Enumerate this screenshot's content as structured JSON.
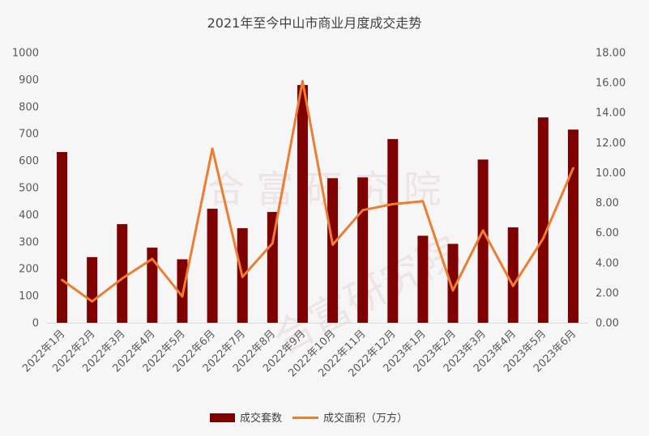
{
  "title": "2021年至今中山市商业月度成交走势",
  "watermark": "合  富  研  究  院",
  "colors": {
    "bar": "#7f0000",
    "line": "#ed7d31",
    "background": "#f6f6f6"
  },
  "chart_data": {
    "type": "bar",
    "title": "2021年至今中山市商业月度成交走势",
    "categories": [
      "2022年1月",
      "2022年2月",
      "2022年3月",
      "2022年4月",
      "2022年5月",
      "2022年6月",
      "2022年7月",
      "2022年8月",
      "2022年9月",
      "2022年10月",
      "2022年11月",
      "2022年12月",
      "2023年1月",
      "2023年2月",
      "2023年3月",
      "2023年4月",
      "2023年5月",
      "2023年6月"
    ],
    "series": [
      {
        "name": "成交套数",
        "type": "bar",
        "axis": "left",
        "values": [
          632,
          243,
          365,
          278,
          235,
          422,
          350,
          410,
          880,
          535,
          538,
          680,
          322,
          292,
          604,
          353,
          760,
          715
        ]
      },
      {
        "name": "成交面积（万方）",
        "type": "line",
        "axis": "right",
        "values": [
          2.85,
          1.42,
          2.95,
          4.25,
          1.75,
          11.6,
          3.05,
          5.3,
          16.1,
          5.2,
          7.5,
          7.9,
          8.1,
          2.15,
          6.15,
          2.45,
          5.6,
          10.3
        ]
      }
    ],
    "y_left": {
      "ylim": [
        0,
        1000
      ],
      "ticks": [
        "0",
        "100",
        "200",
        "300",
        "400",
        "500",
        "600",
        "700",
        "800",
        "900",
        "1000"
      ]
    },
    "y_right": {
      "ylim": [
        0,
        18
      ],
      "ticks": [
        "0.00",
        "2.00",
        "4.00",
        "6.00",
        "8.00",
        "10.00",
        "12.00",
        "14.00",
        "16.00",
        "18.00"
      ]
    },
    "grid": false,
    "legend_position": "bottom"
  }
}
